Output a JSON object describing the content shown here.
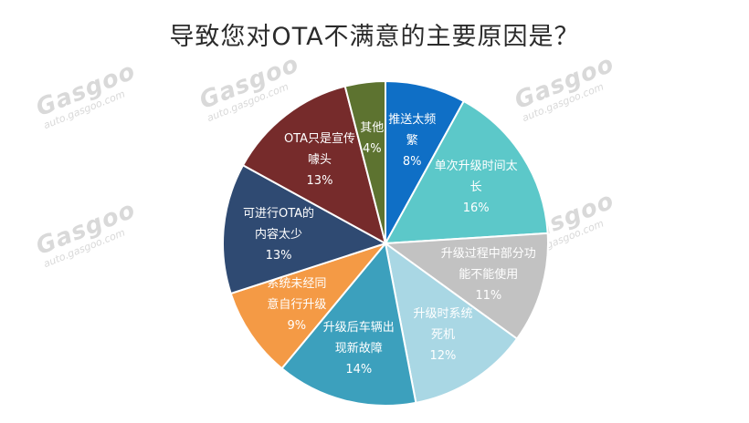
{
  "watermark": {
    "brand": "Gasgoo",
    "url": "auto.gasgoo.com"
  },
  "chart_data": {
    "type": "pie",
    "title": "导致您对OTA不满意的主要原因是？",
    "slices": [
      {
        "lines": [
          "推送太频",
          "繁"
        ],
        "pct_label": "8%",
        "value": 8,
        "color": "#0f6fc6"
      },
      {
        "lines": [
          "单次升级时间太",
          "长"
        ],
        "pct_label": "16%",
        "value": 16,
        "color": "#5cc8c9"
      },
      {
        "lines": [
          "升级过程中部分功",
          "能不能使用"
        ],
        "pct_label": "11%",
        "value": 11,
        "color": "#c2c2c2"
      },
      {
        "lines": [
          "升级时系统",
          "死机"
        ],
        "pct_label": "12%",
        "value": 12,
        "color": "#a9d7e4"
      },
      {
        "lines": [
          "升级后车辆出",
          "现新故障"
        ],
        "pct_label": "14%",
        "value": 14,
        "color": "#3ca0bd"
      },
      {
        "lines": [
          "系统未经同",
          "意自行升级"
        ],
        "pct_label": "9%",
        "value": 9,
        "color": "#f49a45"
      },
      {
        "lines": [
          "可进行OTA的",
          "内容太少"
        ],
        "pct_label": "13%",
        "value": 13,
        "color": "#2f4a72"
      },
      {
        "lines": [
          "OTA只是宣传",
          "噱头"
        ],
        "pct_label": "13%",
        "value": 13,
        "color": "#762b2b"
      },
      {
        "lines": [
          "其他"
        ],
        "pct_label": "4%",
        "value": 4,
        "color": "#5d7330"
      }
    ]
  }
}
